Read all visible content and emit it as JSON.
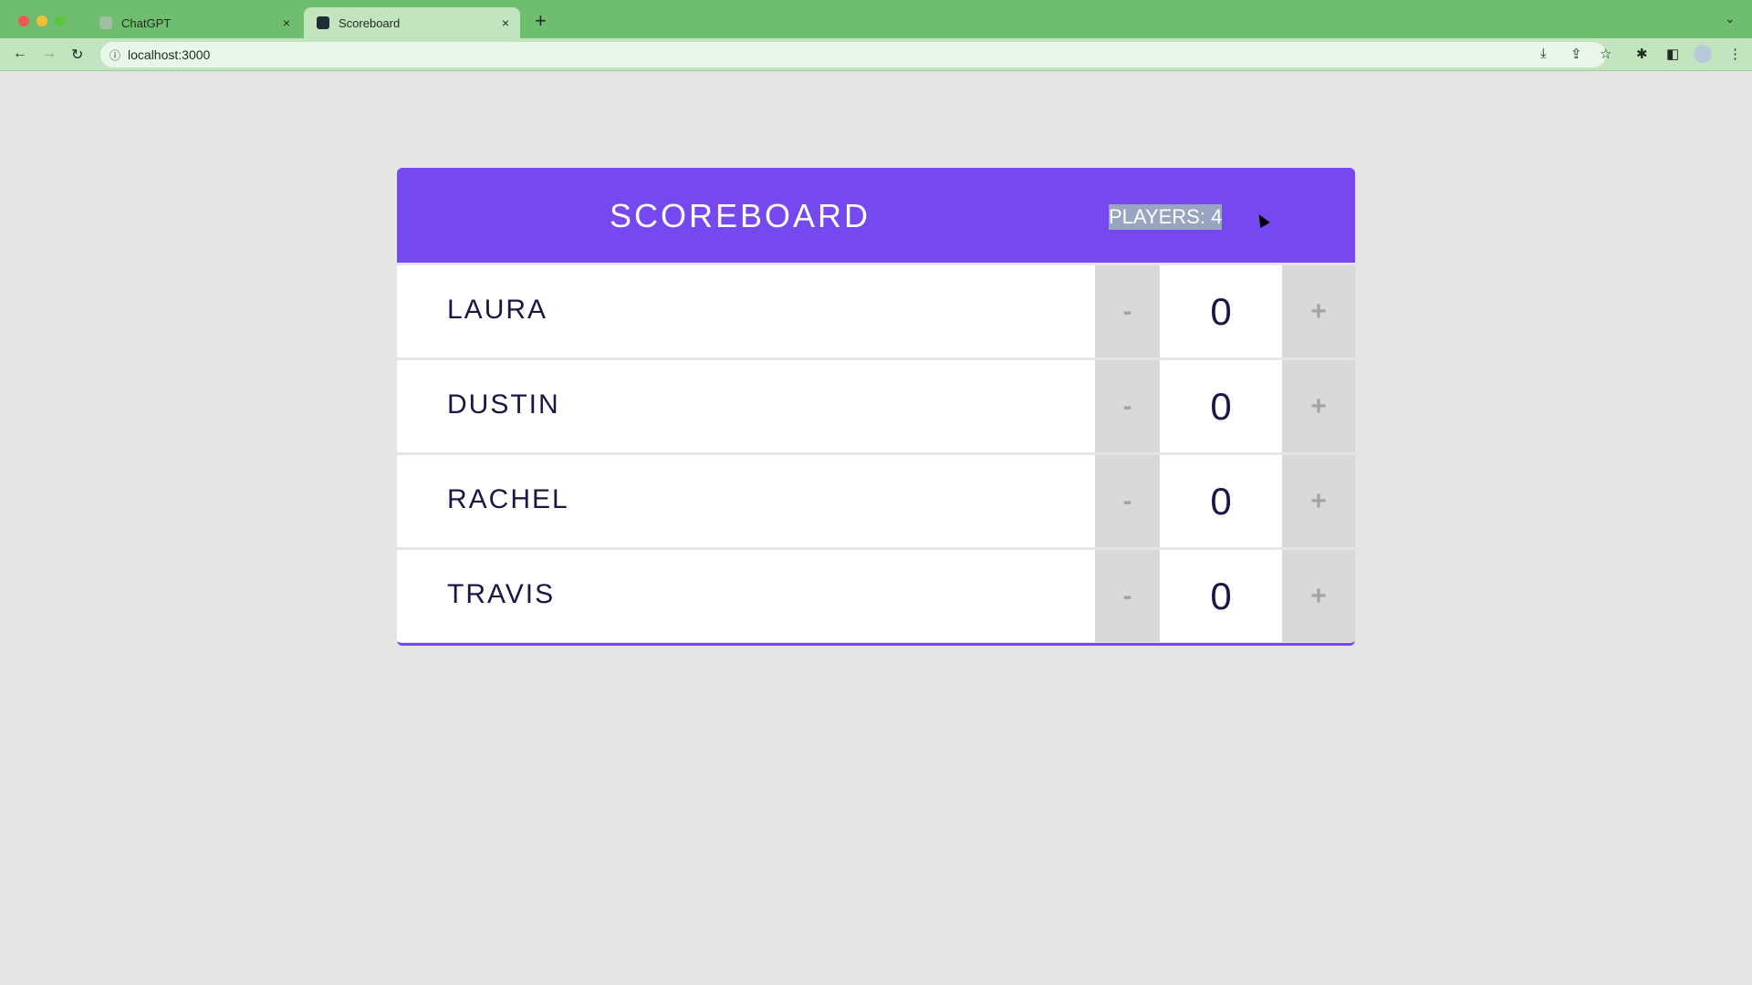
{
  "browser": {
    "tabs": [
      {
        "label": "ChatGPT",
        "active": false
      },
      {
        "label": "Scoreboard",
        "active": true
      }
    ],
    "url": "localhost:3000",
    "close_icon": "×",
    "new_tab": "+"
  },
  "scoreboard": {
    "title": "SCOREBOARD",
    "players_stat": "PLAYERS: 4",
    "decrement_label": "-",
    "increment_label": "+",
    "players": [
      {
        "name": "LAURA",
        "score": "0"
      },
      {
        "name": "DUSTIN",
        "score": "0"
      },
      {
        "name": "RACHEL",
        "score": "0"
      },
      {
        "name": "TRAVIS",
        "score": "0"
      }
    ]
  },
  "colors": {
    "header": "#7549ef",
    "text": "#1b1645",
    "chrome": "#6fbd6e"
  }
}
